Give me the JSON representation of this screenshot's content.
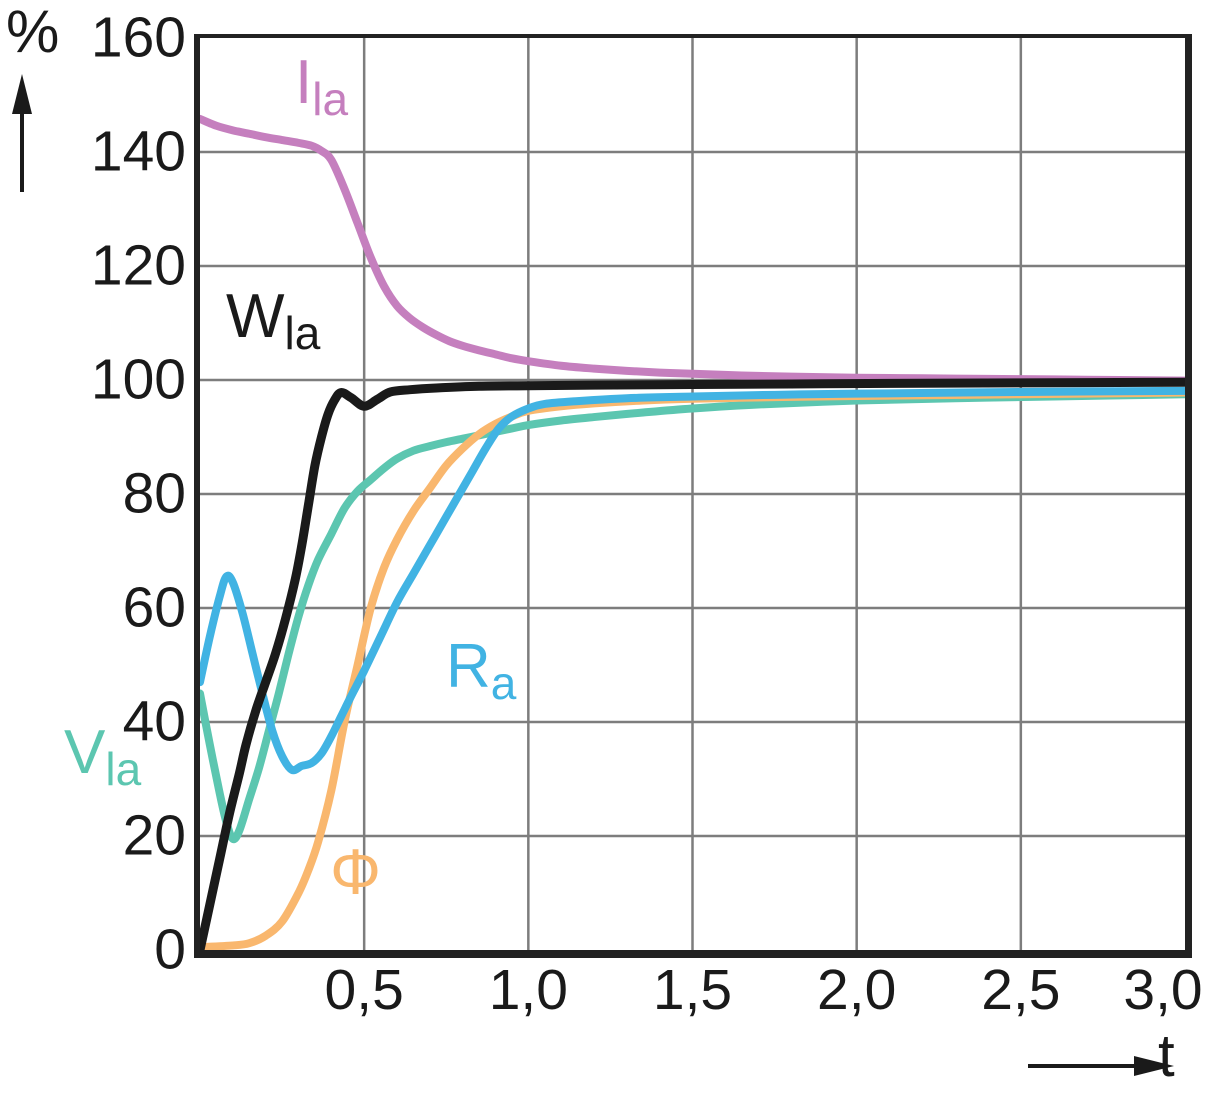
{
  "chart_data": {
    "type": "line",
    "title": "",
    "xlabel": "t",
    "ylabel": "%",
    "xlim": [
      0,
      3
    ],
    "ylim": [
      0,
      160
    ],
    "grid": true,
    "grid_color": "#7d7d7d",
    "axis_color": "#222222",
    "background": "#ffffff",
    "x_ticks": [
      {
        "value": 0.5,
        "label": "0,5"
      },
      {
        "value": 1.0,
        "label": "1,0"
      },
      {
        "value": 1.5,
        "label": "1,5"
      },
      {
        "value": 2.0,
        "label": "2,0"
      },
      {
        "value": 2.5,
        "label": "2,5"
      },
      {
        "value": 3.0,
        "label": "3,0",
        "dx": -22
      }
    ],
    "y_ticks": [
      {
        "value": 0,
        "label": "0"
      },
      {
        "value": 20,
        "label": "20"
      },
      {
        "value": 40,
        "label": "40"
      },
      {
        "value": 60,
        "label": "60"
      },
      {
        "value": 80,
        "label": "80"
      },
      {
        "value": 100,
        "label": "100"
      },
      {
        "value": 120,
        "label": "120"
      },
      {
        "value": 140,
        "label": "140"
      },
      {
        "value": 160,
        "label": "160"
      }
    ],
    "series": [
      {
        "name": "Ila",
        "label_main": "I",
        "label_sub": "la",
        "color": "#c57fbe",
        "width": 8,
        "points": [
          [
            0,
            145.8
          ],
          [
            0.05,
            144.6
          ],
          [
            0.1,
            143.8
          ],
          [
            0.15,
            143.2
          ],
          [
            0.2,
            142.6
          ],
          [
            0.25,
            142.1
          ],
          [
            0.3,
            141.6
          ],
          [
            0.34,
            141.1
          ],
          [
            0.37,
            140.2
          ],
          [
            0.4,
            138.6
          ],
          [
            0.44,
            133.5
          ],
          [
            0.48,
            127.5
          ],
          [
            0.52,
            121.5
          ],
          [
            0.56,
            116.5
          ],
          [
            0.6,
            113
          ],
          [
            0.64,
            110.8
          ],
          [
            0.68,
            109.2
          ],
          [
            0.72,
            107.9
          ],
          [
            0.76,
            106.8
          ],
          [
            0.8,
            106
          ],
          [
            0.85,
            105.2
          ],
          [
            0.9,
            104.5
          ],
          [
            0.95,
            103.8
          ],
          [
            1,
            103.3
          ],
          [
            1.1,
            102.5
          ],
          [
            1.2,
            102
          ],
          [
            1.3,
            101.6
          ],
          [
            1.4,
            101.3
          ],
          [
            1.5,
            101.1
          ],
          [
            1.65,
            100.8
          ],
          [
            1.8,
            100.6
          ],
          [
            2,
            100.4
          ],
          [
            2.2,
            100.3
          ],
          [
            2.4,
            100.2
          ],
          [
            2.6,
            100.1
          ],
          [
            2.8,
            100
          ],
          [
            3,
            99.9
          ]
        ]
      },
      {
        "name": "Vla",
        "label_main": "V",
        "label_sub": "la",
        "color": "#5cc6b0",
        "width": 8,
        "points": [
          [
            0,
            45
          ],
          [
            0.03,
            36
          ],
          [
            0.06,
            27.5
          ],
          [
            0.08,
            22.5
          ],
          [
            0.1,
            19.5
          ],
          [
            0.12,
            21
          ],
          [
            0.15,
            26.5
          ],
          [
            0.18,
            32
          ],
          [
            0.21,
            38.5
          ],
          [
            0.24,
            45
          ],
          [
            0.27,
            52
          ],
          [
            0.3,
            58.5
          ],
          [
            0.33,
            64
          ],
          [
            0.36,
            68.5
          ],
          [
            0.4,
            73
          ],
          [
            0.44,
            77.5
          ],
          [
            0.48,
            80.5
          ],
          [
            0.52,
            82.5
          ],
          [
            0.56,
            84.5
          ],
          [
            0.6,
            86.2
          ],
          [
            0.65,
            87.6
          ],
          [
            0.7,
            88.4
          ],
          [
            0.75,
            89.1
          ],
          [
            0.8,
            89.7
          ],
          [
            0.85,
            90.3
          ],
          [
            0.9,
            90.9
          ],
          [
            0.95,
            91.5
          ],
          [
            1,
            92.1
          ],
          [
            1.1,
            92.9
          ],
          [
            1.2,
            93.5
          ],
          [
            1.35,
            94.3
          ],
          [
            1.5,
            95
          ],
          [
            1.7,
            95.7
          ],
          [
            2,
            96.4
          ],
          [
            2.3,
            96.8
          ],
          [
            2.6,
            97.1
          ],
          [
            3,
            97.5
          ]
        ]
      },
      {
        "name": "Phi",
        "label_main": "Φ",
        "label_sub": "",
        "color": "#f9b76e",
        "width": 8,
        "points": [
          [
            0,
            0.5
          ],
          [
            0.1,
            0.8
          ],
          [
            0.15,
            1.2
          ],
          [
            0.2,
            2.5
          ],
          [
            0.25,
            5
          ],
          [
            0.3,
            10
          ],
          [
            0.33,
            14
          ],
          [
            0.36,
            19
          ],
          [
            0.4,
            28
          ],
          [
            0.44,
            40
          ],
          [
            0.48,
            50
          ],
          [
            0.52,
            60
          ],
          [
            0.56,
            67
          ],
          [
            0.6,
            72
          ],
          [
            0.65,
            77
          ],
          [
            0.7,
            81
          ],
          [
            0.75,
            85
          ],
          [
            0.8,
            88
          ],
          [
            0.85,
            90.5
          ],
          [
            0.9,
            92.3
          ],
          [
            0.95,
            93.6
          ],
          [
            1,
            94.6
          ],
          [
            1.1,
            95.4
          ],
          [
            1.2,
            95.9
          ],
          [
            1.35,
            96.4
          ],
          [
            1.5,
            96.7
          ],
          [
            1.75,
            97
          ],
          [
            2,
            97.2
          ],
          [
            2.5,
            97.5
          ],
          [
            3,
            97.8
          ]
        ]
      },
      {
        "name": "Ra",
        "label_main": "R",
        "label_sub": "a",
        "color": "#41b3e3",
        "width": 8,
        "points": [
          [
            0,
            47
          ],
          [
            0.03,
            55
          ],
          [
            0.06,
            62
          ],
          [
            0.08,
            65.5
          ],
          [
            0.1,
            64.5
          ],
          [
            0.13,
            59
          ],
          [
            0.16,
            52
          ],
          [
            0.19,
            45
          ],
          [
            0.22,
            38.5
          ],
          [
            0.25,
            34
          ],
          [
            0.28,
            31.6
          ],
          [
            0.31,
            32.3
          ],
          [
            0.34,
            32.8
          ],
          [
            0.37,
            34.5
          ],
          [
            0.4,
            37.5
          ],
          [
            0.43,
            41
          ],
          [
            0.46,
            44.5
          ],
          [
            0.5,
            49
          ],
          [
            0.55,
            55
          ],
          [
            0.6,
            61
          ],
          [
            0.65,
            66
          ],
          [
            0.7,
            71
          ],
          [
            0.75,
            76
          ],
          [
            0.79,
            80
          ],
          [
            0.83,
            84
          ],
          [
            0.87,
            88
          ],
          [
            0.91,
            91.5
          ],
          [
            0.95,
            93.6
          ],
          [
            1,
            95
          ],
          [
            1.05,
            95.8
          ],
          [
            1.15,
            96.3
          ],
          [
            1.3,
            96.8
          ],
          [
            1.5,
            97.1
          ],
          [
            1.75,
            97.4
          ],
          [
            2,
            97.6
          ],
          [
            2.5,
            97.9
          ],
          [
            3,
            98.1
          ]
        ]
      },
      {
        "name": "Wla",
        "label_main": "W",
        "label_sub": "la",
        "color": "#1a1a1a",
        "width": 9,
        "points": [
          [
            0,
            0
          ],
          [
            0.03,
            8
          ],
          [
            0.06,
            16
          ],
          [
            0.09,
            24
          ],
          [
            0.12,
            31
          ],
          [
            0.14,
            36
          ],
          [
            0.17,
            42
          ],
          [
            0.2,
            47
          ],
          [
            0.23,
            52
          ],
          [
            0.26,
            58
          ],
          [
            0.29,
            65
          ],
          [
            0.31,
            71
          ],
          [
            0.33,
            78
          ],
          [
            0.35,
            85
          ],
          [
            0.37,
            90
          ],
          [
            0.39,
            94
          ],
          [
            0.41,
            96.5
          ],
          [
            0.43,
            97.8
          ],
          [
            0.46,
            96.9
          ],
          [
            0.5,
            95.4
          ],
          [
            0.54,
            96.6
          ],
          [
            0.58,
            97.9
          ],
          [
            0.64,
            98.3
          ],
          [
            0.72,
            98.6
          ],
          [
            0.85,
            98.9
          ],
          [
            1,
            99
          ],
          [
            1.2,
            99.1
          ],
          [
            1.5,
            99.2
          ],
          [
            1.8,
            99.3
          ],
          [
            2.1,
            99.4
          ],
          [
            2.5,
            99.5
          ],
          [
            3,
            99.6
          ]
        ]
      }
    ]
  }
}
